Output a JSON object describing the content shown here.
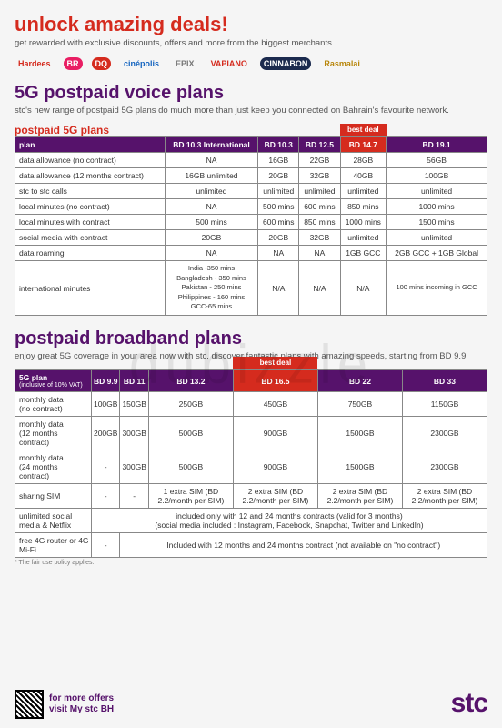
{
  "hero": {
    "title": "unlock amazing deals!",
    "sub": "get rewarded with exclusive discounts, offers and more from the biggest merchants."
  },
  "logos": [
    {
      "txt": "Hardees",
      "fg": "#d52b1e",
      "bg": ""
    },
    {
      "txt": "BR",
      "fg": "#fff",
      "bg": "#e91e63"
    },
    {
      "txt": "DQ",
      "fg": "#fff",
      "bg": "#d52b1e"
    },
    {
      "txt": "cinépolis",
      "fg": "#1565c0",
      "bg": ""
    },
    {
      "txt": "EPIX",
      "fg": "#777",
      "bg": ""
    },
    {
      "txt": "VAPIANO",
      "fg": "#d52b1e",
      "bg": ""
    },
    {
      "txt": "CINNABON",
      "fg": "#fff",
      "bg": "#1b2a4e"
    },
    {
      "txt": "Rasmalai",
      "fg": "#b8860b",
      "bg": ""
    }
  ],
  "voice": {
    "title": "5G postpaid voice plans",
    "sub": "stc's new range of postpaid 5G plans do much more than just keep you connected on Bahrain's favourite network.",
    "subtitle": "postpaid 5G plans",
    "best_deal": "best deal",
    "best_deal_col": 4,
    "headers": [
      "plan",
      "BD 10.3 International",
      "BD 10.3",
      "BD 12.5",
      "BD 14.7",
      "BD 19.1"
    ],
    "rows": [
      [
        "data allowance (no contract)",
        "NA",
        "16GB",
        "22GB",
        "28GB",
        "56GB"
      ],
      [
        "data allowance (12 months contract)",
        "16GB unlimited",
        "20GB",
        "32GB",
        "40GB",
        "100GB"
      ],
      [
        "stc to stc calls",
        "unlimited",
        "unlimited",
        "unlimited",
        "unlimited",
        "unlimited"
      ],
      [
        "local minutes (no contract)",
        "NA",
        "500 mins",
        "600 mins",
        "850 mins",
        "1000 mins"
      ],
      [
        "local minutes with contract",
        "500 mins",
        "600 mins",
        "850 mins",
        "1000 mins",
        "1500 mins"
      ],
      [
        "social media with contract",
        "20GB",
        "20GB",
        "32GB",
        "unlimited",
        "unlimited"
      ],
      [
        "data roaming",
        "NA",
        "NA",
        "NA",
        "1GB GCC",
        "2GB GCC + 1GB Global"
      ]
    ],
    "intl_label": "international minutes",
    "intl_first": "India -350 mins\nBangladesh - 350 mins\nPakistan - 250 mins\nPhilippines - 160 mins\nGCC-65 mins",
    "intl_na": "N/A",
    "intl_last": "100 mins incoming in GCC"
  },
  "bb": {
    "title": "postpaid broadband plans",
    "sub": "enjoy great 5G coverage in your area now with stc. discover fantastic plans with amazing speeds, starting from BD 9.9",
    "best_deal": "best deal",
    "best_deal_col": 4,
    "header_main": "5G plan",
    "header_sub": "(inclusive of 10% VAT)",
    "headers": [
      "BD 9.9",
      "BD 11",
      "BD 13.2",
      "BD 16.5",
      "BD 22",
      "BD 33"
    ],
    "rows": [
      {
        "label": "monthly data\n(no contract)",
        "cells": [
          "100GB",
          "150GB",
          "250GB",
          "450GB",
          "750GB",
          "1150GB"
        ]
      },
      {
        "label": "monthly data\n(12 months contract)",
        "cells": [
          "200GB",
          "300GB",
          "500GB",
          "900GB",
          "1500GB",
          "2300GB"
        ]
      },
      {
        "label": "monthly data\n(24 months contract)",
        "cells": [
          "-",
          "300GB",
          "500GB",
          "900GB",
          "1500GB",
          "2300GB"
        ]
      },
      {
        "label": "sharing SIM",
        "cells": [
          "-",
          "-",
          "1 extra SIM (BD 2.2/month per SIM)",
          "2 extra SIM (BD 2.2/month per SIM)",
          "2 extra SIM (BD 2.2/month per SIM)",
          "2 extra SIM (BD 2.2/month per SIM)"
        ]
      }
    ],
    "span_rows": [
      {
        "label": "unlimited social media & Netflix",
        "text": "included only with 12 and 24 months contracts (valid for 3 months)\n(social media included : Instagram, Facebook, Snapchat, Twitter and LinkedIn)"
      },
      {
        "label": "free 4G router or 4G Mi-Fi",
        "text": "Included with 12 months and 24 months  contract (not available on \"no contract\")",
        "first": "-"
      }
    ],
    "note": "* The fair use policy applies."
  },
  "footer": {
    "line1": "for more offers",
    "line2": "visit My stc BH",
    "brand": "stc"
  },
  "watermark": "dubizzle",
  "colors": {
    "purple": "#56126b",
    "red": "#d52b1e"
  }
}
